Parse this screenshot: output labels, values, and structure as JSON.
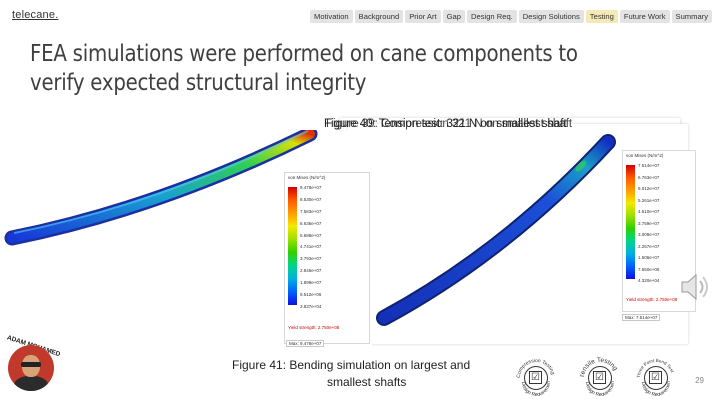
{
  "logo": "telecane.",
  "nav": {
    "tabs": [
      {
        "label": "Motivation",
        "active": false
      },
      {
        "label": "Background",
        "active": false
      },
      {
        "label": "Prior Art",
        "active": false
      },
      {
        "label": "Gap",
        "active": false
      },
      {
        "label": "Design Req.",
        "active": false
      },
      {
        "label": "Design Solutions",
        "active": false
      },
      {
        "label": "Testing",
        "active": true
      },
      {
        "label": "Future Work",
        "active": false
      },
      {
        "label": "Summary",
        "active": false
      }
    ]
  },
  "title": "FEA simulations were performed on cane components to verify expected structural integrity",
  "overlap_captions": {
    "a": "Figure 40: Tension test: 321 N on smallest shaft",
    "b": "Figure 39: Compression 321 N on smallest shaft"
  },
  "left_legend": {
    "title": "von Mises (N/m^2)",
    "values": [
      "9.478e+07",
      "8.530e+07",
      "7.583e+07",
      "6.636e+07",
      "5.688e+07",
      "4.741e+07",
      "3.793e+07",
      "2.846e+07",
      "1.899e+07",
      "9.512e+06",
      "3.837e+04"
    ],
    "yield": "Yield strength: 2.750e+08",
    "max": "Max: 9.478e+07"
  },
  "right_legend": {
    "title": "von Mises (N/m^2)",
    "values": [
      "7.514e+07",
      "6.763e+07",
      "6.012e+07",
      "5.261e+07",
      "4.510e+07",
      "3.759e+07",
      "3.008e+07",
      "2.257e+07",
      "1.506e+07",
      "7.550e+06",
      "4.320e+04"
    ],
    "yield": "Yield strength: 2.750e+08",
    "max": "Max: 7.514e+07"
  },
  "caption41": {
    "line1": "Figure 41: Bending simulation on largest and",
    "line2": "smallest shafts"
  },
  "presenter": "ADAM MOHAMED",
  "badges": [
    {
      "top": "Compression Testing",
      "bottom": "Design Requirement"
    },
    {
      "top": "Tensile Testing",
      "bottom": "Design Requirement"
    },
    {
      "top": "Three Point Bend Test",
      "bottom": "Design Requirement"
    }
  ],
  "check_glyph": "☑",
  "page_number": "29",
  "colors": {
    "accent": "#f5e9b5",
    "tab": "#e3e3e3",
    "avatar": "#c0392b"
  }
}
